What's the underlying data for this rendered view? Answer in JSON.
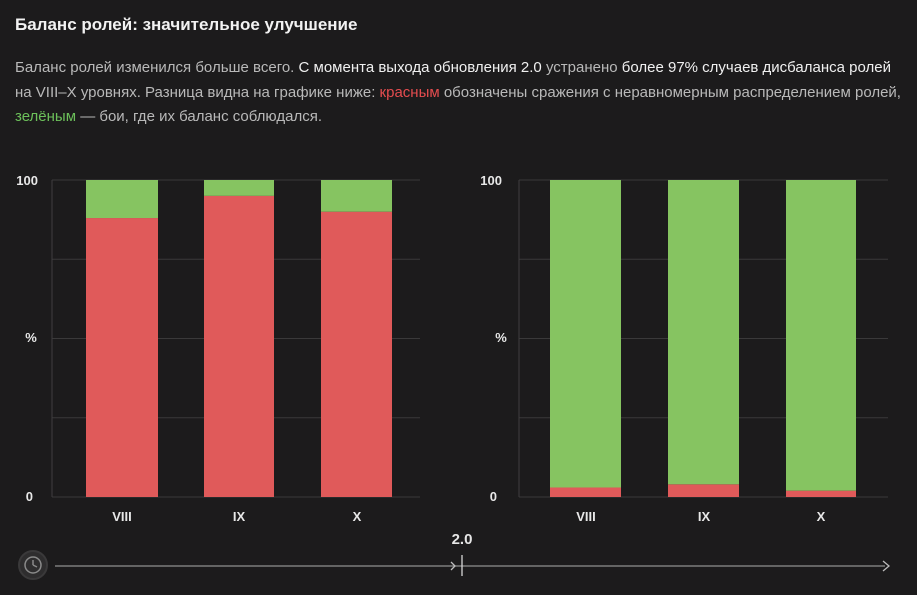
{
  "heading": "Баланс ролей: значительное улучшение",
  "paragraph": {
    "p1": "Баланс ролей изменился больше всего. ",
    "p2": "С момента выхода обновления 2.0",
    "p3": " устранено ",
    "p4": "более 97% случаев дисбаланса ролей",
    "p5": " на VIII–X уровнях. Разница видна на графике ниже: ",
    "p6": "красным",
    "p7": " обозначены сражения с неравномерным распределением ролей, ",
    "p8": "зелёным",
    "p9": " — бои, где их баланс соблюдался."
  },
  "colors": {
    "imbalanced": "#e05a5a",
    "balanced": "#86c461",
    "grid": "#3a393a",
    "background": "#1c1b1c"
  },
  "chart_data": [
    {
      "type": "bar",
      "stacked": true,
      "title": "",
      "ylabel": "%",
      "ylim": [
        0,
        100
      ],
      "yticks": [
        "0",
        "100"
      ],
      "categories": [
        "VIII",
        "IX",
        "X"
      ],
      "series": [
        {
          "name": "imbalanced",
          "color": "red",
          "values": [
            88,
            95,
            90
          ]
        },
        {
          "name": "balanced",
          "color": "green",
          "values": [
            12,
            5,
            10
          ]
        }
      ]
    },
    {
      "type": "bar",
      "stacked": true,
      "title": "",
      "ylabel": "%",
      "ylim": [
        0,
        100
      ],
      "yticks": [
        "0",
        "100"
      ],
      "categories": [
        "VIII",
        "IX",
        "X"
      ],
      "series": [
        {
          "name": "imbalanced",
          "color": "red",
          "values": [
            3,
            4,
            2
          ]
        },
        {
          "name": "balanced",
          "color": "green",
          "values": [
            97,
            96,
            98
          ]
        }
      ]
    }
  ],
  "timeline": {
    "marker_label": "2.0",
    "icon": "clock-gear-icon"
  }
}
